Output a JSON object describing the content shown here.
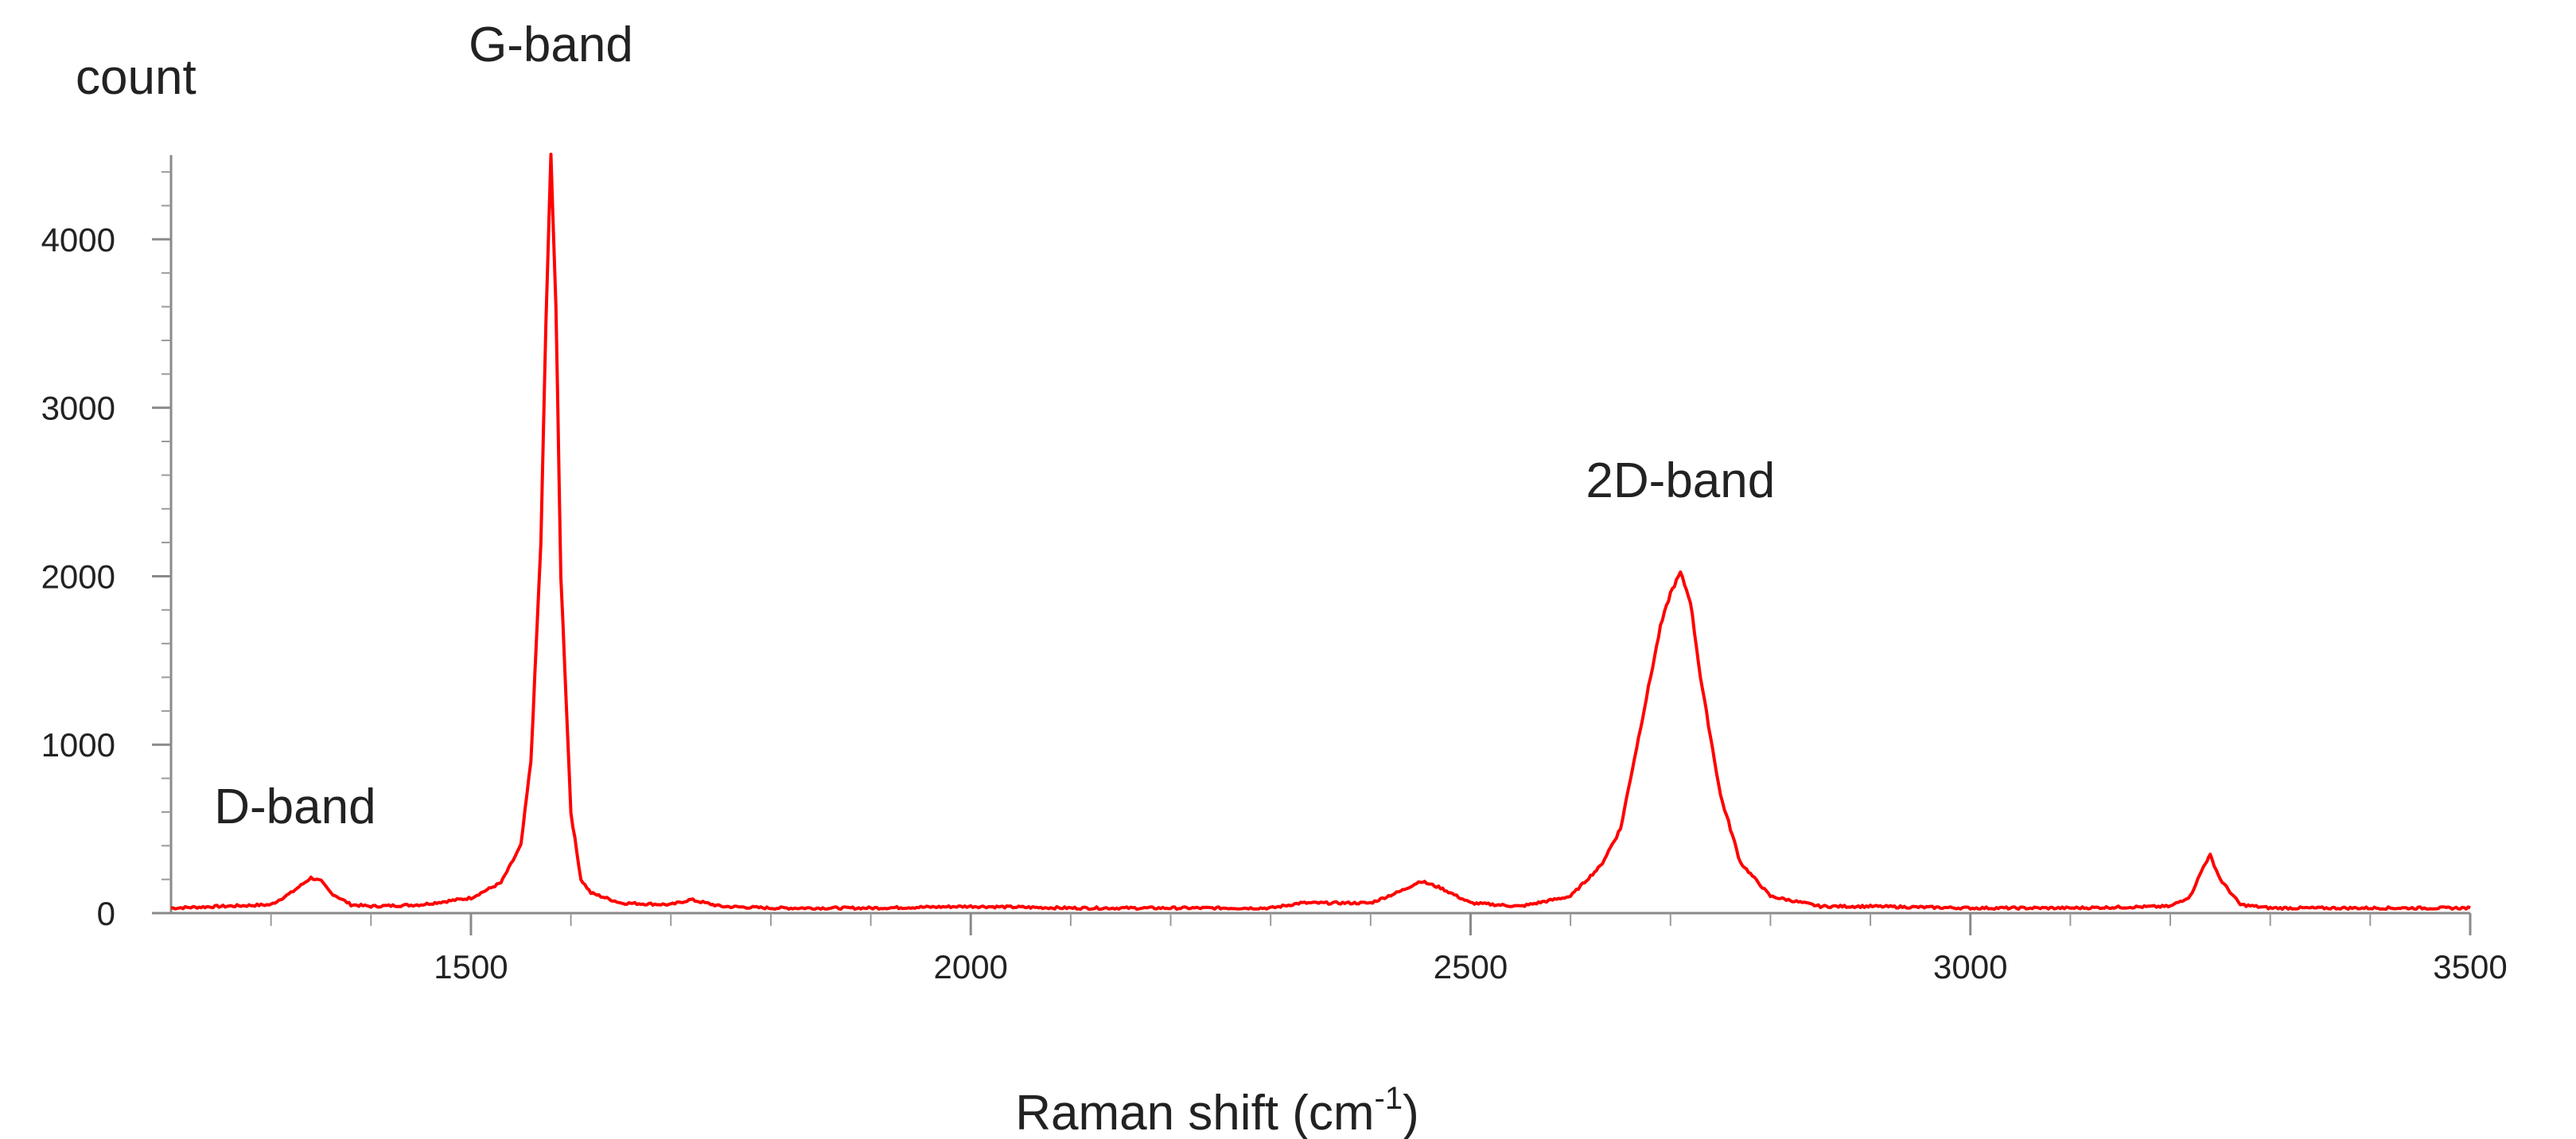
{
  "chart_data": {
    "type": "line",
    "ylabel": "count",
    "xlabel": "Raman shift (cm",
    "xlabel_sup": "-1",
    "xlabel_close": ")",
    "xlim": [
      1200,
      3500
    ],
    "ylim": [
      0,
      4500
    ],
    "x_ticks": [
      1500,
      2000,
      2500,
      3000,
      3500
    ],
    "y_ticks": [
      0,
      1000,
      2000,
      3000,
      4000
    ],
    "x_tick_labels": [
      "1500",
      "2000",
      "2500",
      "3000",
      "3500"
    ],
    "y_tick_labels": [
      "0",
      "1000",
      "2000",
      "3000",
      "4000"
    ],
    "grid": false,
    "line_color": "#ff0000",
    "annotations": [
      {
        "text": "D-band",
        "x": 1340,
        "y": 250
      },
      {
        "text": "G-band",
        "x": 1580,
        "y": 4500
      },
      {
        "text": "2D-band",
        "x": 2710,
        "y": 2020
      }
    ],
    "series": [
      {
        "x": [
          1200,
          1250,
          1300,
          1320,
          1340,
          1350,
          1360,
          1380,
          1400,
          1450,
          1500,
          1530,
          1550,
          1560,
          1570,
          1575,
          1580,
          1585,
          1590,
          1600,
          1610,
          1620,
          1650,
          1700,
          1720,
          1750,
          1800,
          1900,
          2000,
          2100,
          2200,
          2300,
          2330,
          2400,
          2430,
          2450,
          2470,
          2500,
          2550,
          2600,
          2630,
          2650,
          2670,
          2690,
          2700,
          2710,
          2720,
          2730,
          2750,
          2770,
          2800,
          2850,
          2900,
          3000,
          3100,
          3200,
          3220,
          3235,
          3240,
          3250,
          3270,
          3300,
          3400,
          3500
        ],
        "y": [
          30,
          40,
          50,
          120,
          210,
          190,
          120,
          50,
          40,
          50,
          90,
          180,
          400,
          900,
          2200,
          3500,
          4500,
          3600,
          2000,
          600,
          200,
          120,
          60,
          50,
          80,
          40,
          30,
          30,
          40,
          30,
          30,
          30,
          60,
          60,
          130,
          190,
          150,
          60,
          40,
          100,
          280,
          500,
          1100,
          1700,
          1900,
          2020,
          1850,
          1400,
          700,
          300,
          100,
          40,
          40,
          30,
          30,
          40,
          100,
          300,
          340,
          200,
          50,
          30,
          30,
          30
        ]
      }
    ]
  }
}
